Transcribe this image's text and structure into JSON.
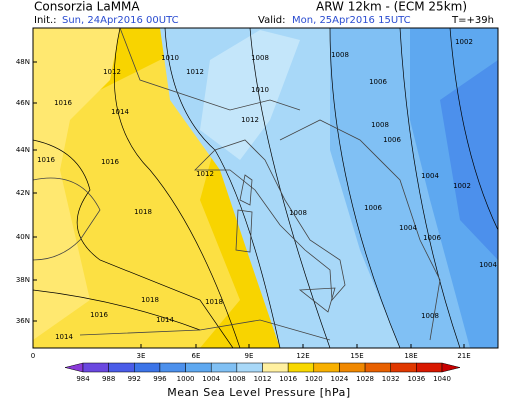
{
  "header": {
    "org": "Consorzia LaMMA",
    "model": "ARW 12km - (ECM 25km)",
    "init_label": "Init.:",
    "init": "Sun, 24Apr2016 00UTC",
    "valid_label": "Valid:",
    "valid": "Mon, 25Apr2016 15UTC",
    "lead": "T=+39h"
  },
  "map": {
    "lat_labels": [
      "48N",
      "46N",
      "44N",
      "42N",
      "40N",
      "38N",
      "36N"
    ],
    "lon_labels": [
      "0",
      "3E",
      "6E",
      "9E",
      "12E",
      "15E",
      "18E",
      "21E"
    ],
    "isobar_labels": [
      "1012",
      "1012",
      "1010",
      "1008",
      "1008",
      "1006",
      "1002",
      "1016",
      "1014",
      "1012",
      "1012",
      "1010",
      "1008",
      "1006",
      "1004",
      "1016",
      "1018",
      "1006",
      "1004",
      "1002",
      "1008",
      "1006",
      "1016",
      "1018",
      "1016",
      "1014",
      "1014",
      "1008",
      "1004",
      "1018"
    ]
  },
  "colorbar": {
    "title": "Mean Sea Level Pressure [hPa]",
    "labels": [
      984,
      988,
      992,
      996,
      1000,
      1004,
      1008,
      1012,
      1016,
      1020,
      1024,
      1028,
      1032,
      1036,
      1040
    ],
    "colors": [
      "#8a3ad8",
      "#6a48e0",
      "#4a5ce8",
      "#3c74e8",
      "#4c90ec",
      "#5ea8f0",
      "#80c0f4",
      "#a8d8f8",
      "#fff0a0",
      "#f8d800",
      "#f8b000",
      "#f08800",
      "#e86000",
      "#e03800",
      "#d81800",
      "#c80000"
    ]
  }
}
